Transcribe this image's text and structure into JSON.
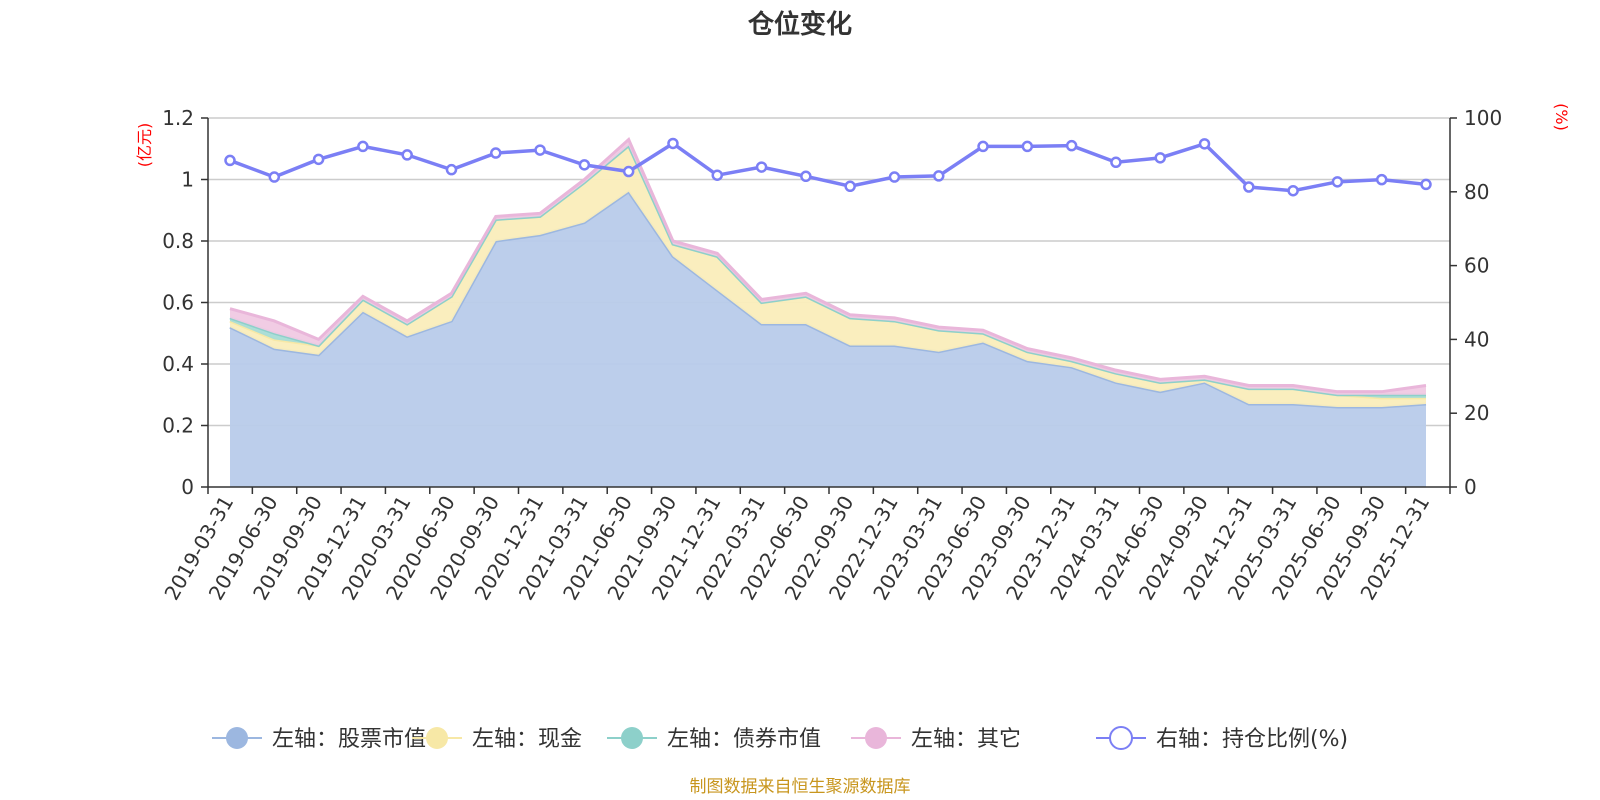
{
  "chart_data": {
    "type": "area",
    "title": "仓位变化",
    "source": "制图数据来自恒生聚源数据库",
    "left_axis": {
      "unit": "(亿元)",
      "min": 0,
      "max": 1.2,
      "ticks": [
        "0",
        "0.2",
        "0.4",
        "0.6",
        "0.8",
        "1",
        "1.2"
      ],
      "tick_values": [
        0,
        0.2,
        0.4,
        0.6,
        0.8,
        1,
        1.2
      ]
    },
    "right_axis": {
      "unit": "(%)",
      "min": 0,
      "max": 100,
      "ticks": [
        "0",
        "20",
        "40",
        "60",
        "80",
        "100"
      ],
      "tick_values": [
        0,
        20,
        40,
        60,
        80,
        100
      ]
    },
    "categories": [
      "2019-03-31",
      "2019-06-30",
      "2019-09-30",
      "2019-12-31",
      "2020-03-31",
      "2020-06-30",
      "2020-09-30",
      "2020-12-31",
      "2021-03-31",
      "2021-06-30",
      "2021-09-30",
      "2021-12-31",
      "2022-03-31",
      "2022-06-30",
      "2022-09-30",
      "2022-12-31",
      "2023-03-31",
      "2023-06-30",
      "2023-09-30",
      "2023-12-31",
      "2024-03-31",
      "2024-06-30",
      "2024-09-30",
      "2024-12-31",
      "2025-03-31",
      "2025-06-30",
      "2025-09-30",
      "2025-12-31"
    ],
    "series": [
      {
        "name": "左轴：股票市值",
        "axis": "left",
        "kind": "area",
        "color": "#9cb7e0",
        "fill": "#b8cbea",
        "values": [
          0.52,
          0.45,
          0.43,
          0.57,
          0.49,
          0.54,
          0.8,
          0.82,
          0.86,
          0.96,
          0.75,
          0.64,
          0.53,
          0.53,
          0.46,
          0.46,
          0.44,
          0.47,
          0.41,
          0.39,
          0.34,
          0.31,
          0.34,
          0.27,
          0.27,
          0.26,
          0.26,
          0.27
        ]
      },
      {
        "name": "左轴：现金",
        "axis": "left",
        "kind": "area",
        "color": "#f7e8a6",
        "fill": "#faedbb",
        "values": [
          0.02,
          0.03,
          0.03,
          0.04,
          0.04,
          0.08,
          0.07,
          0.06,
          0.13,
          0.15,
          0.04,
          0.11,
          0.07,
          0.09,
          0.09,
          0.08,
          0.07,
          0.03,
          0.03,
          0.02,
          0.03,
          0.03,
          0.01,
          0.05,
          0.05,
          0.04,
          0.03,
          0.02
        ]
      },
      {
        "name": "左轴：债券市值",
        "axis": "left",
        "kind": "area",
        "color": "#8dd0ca",
        "fill": "#a8dcd6",
        "values": [
          0.01,
          0.02,
          0.0,
          0.0,
          0.0,
          0.0,
          0.0,
          0.0,
          0.0,
          0.0,
          0.0,
          0.0,
          0.0,
          0.0,
          0.0,
          0.0,
          0.0,
          0.0,
          0.0,
          0.0,
          0.0,
          0.0,
          0.0,
          0.0,
          0.0,
          0.0,
          0.01,
          0.01
        ]
      },
      {
        "name": "左轴：其它",
        "axis": "left",
        "kind": "area",
        "color": "#e9b6da",
        "fill": "#f0c9e3",
        "values": [
          0.03,
          0.04,
          0.02,
          0.01,
          0.01,
          0.01,
          0.01,
          0.01,
          0.01,
          0.02,
          0.01,
          0.01,
          0.01,
          0.01,
          0.01,
          0.01,
          0.01,
          0.01,
          0.01,
          0.01,
          0.01,
          0.01,
          0.01,
          0.01,
          0.01,
          0.01,
          0.01,
          0.03
        ]
      },
      {
        "name": "右轴：持仓比例(%)",
        "axis": "right",
        "kind": "line",
        "color": "#7b7ff5",
        "values": [
          88.5,
          84.0,
          88.8,
          92.3,
          90.0,
          86.0,
          90.5,
          91.3,
          87.3,
          85.5,
          93.1,
          84.5,
          86.7,
          84.2,
          81.5,
          84.0,
          84.3,
          92.3,
          92.3,
          92.5,
          88.0,
          89.2,
          93.0,
          81.3,
          80.3,
          82.7,
          83.3,
          82.0
        ]
      }
    ]
  }
}
